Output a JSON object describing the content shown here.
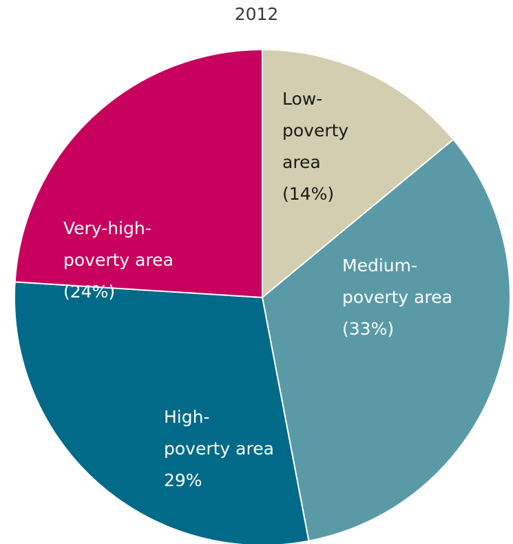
{
  "chart_data": {
    "type": "pie",
    "title": "2012",
    "slices": [
      {
        "label": "Low-poverty area",
        "value": 14,
        "color": "#D3CEB0",
        "text_color": "#1a1a1a",
        "label_lines": [
          "Low-",
          "poverty",
          "area",
          "(14%)"
        ]
      },
      {
        "label": "Medium-poverty area",
        "value": 33,
        "color": "#5A9AA6",
        "text_color": "#ffffff",
        "label_lines": [
          "Medium-",
          "poverty area",
          "(33%)"
        ]
      },
      {
        "label": "High-poverty area",
        "value": 29,
        "color": "#006A88",
        "text_color": "#ffffff",
        "label_lines": [
          "High-",
          "poverty area",
          "29%"
        ]
      },
      {
        "label": "Very-high-poverty area",
        "value": 24,
        "color": "#C8005E",
        "text_color": "#ffffff",
        "label_lines": [
          "Very-high-",
          "poverty area",
          "(24%)"
        ]
      }
    ]
  }
}
